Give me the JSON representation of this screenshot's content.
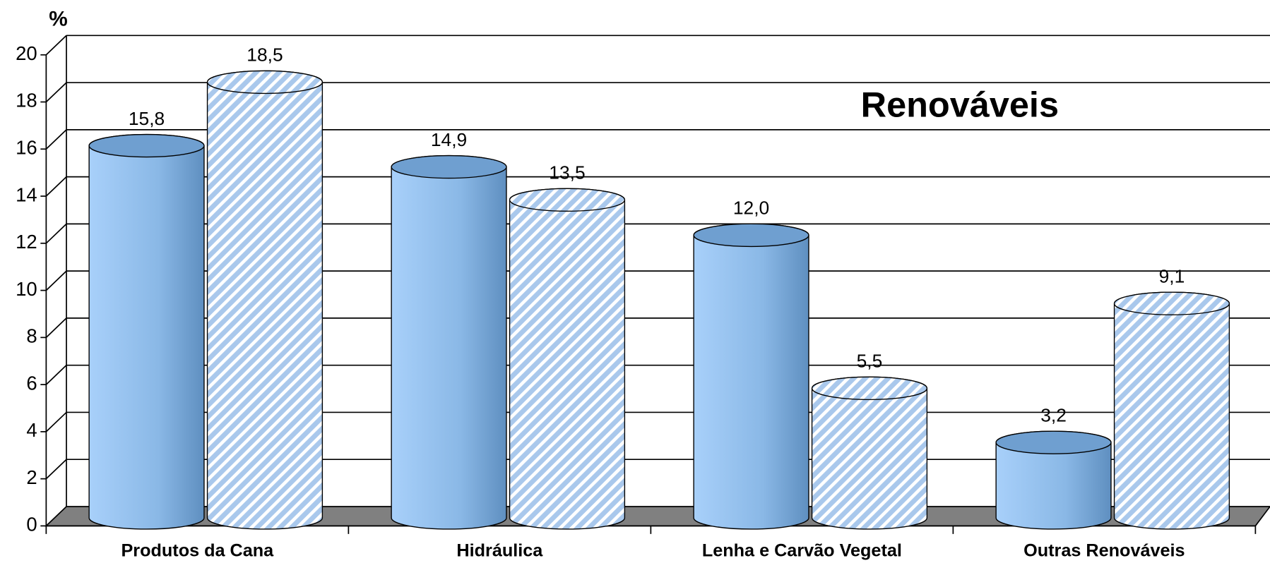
{
  "chart_data": {
    "type": "bar",
    "title": "Renováveis",
    "ylabel": "%",
    "categories": [
      "Produtos da Cana",
      "Hidráulica",
      "Lenha e Carvão Vegetal",
      "Outras Renováveis"
    ],
    "series": [
      {
        "color": "#8ab8e6",
        "values": [
          15.8,
          14.9,
          12.0,
          3.2
        ],
        "value_labels": [
          "15,8",
          "14,9",
          "12,0",
          "3,2"
        ]
      },
      {
        "color": "#a9c8ec",
        "values": [
          18.5,
          13.5,
          5.5,
          9.1
        ],
        "value_labels": [
          "18,5",
          "13,5",
          "5,5",
          "9,1"
        ]
      }
    ],
    "ylim": [
      0,
      20
    ],
    "yticks": [
      0,
      2,
      4,
      6,
      8,
      10,
      12,
      14,
      16,
      18,
      20
    ],
    "grid": true
  }
}
